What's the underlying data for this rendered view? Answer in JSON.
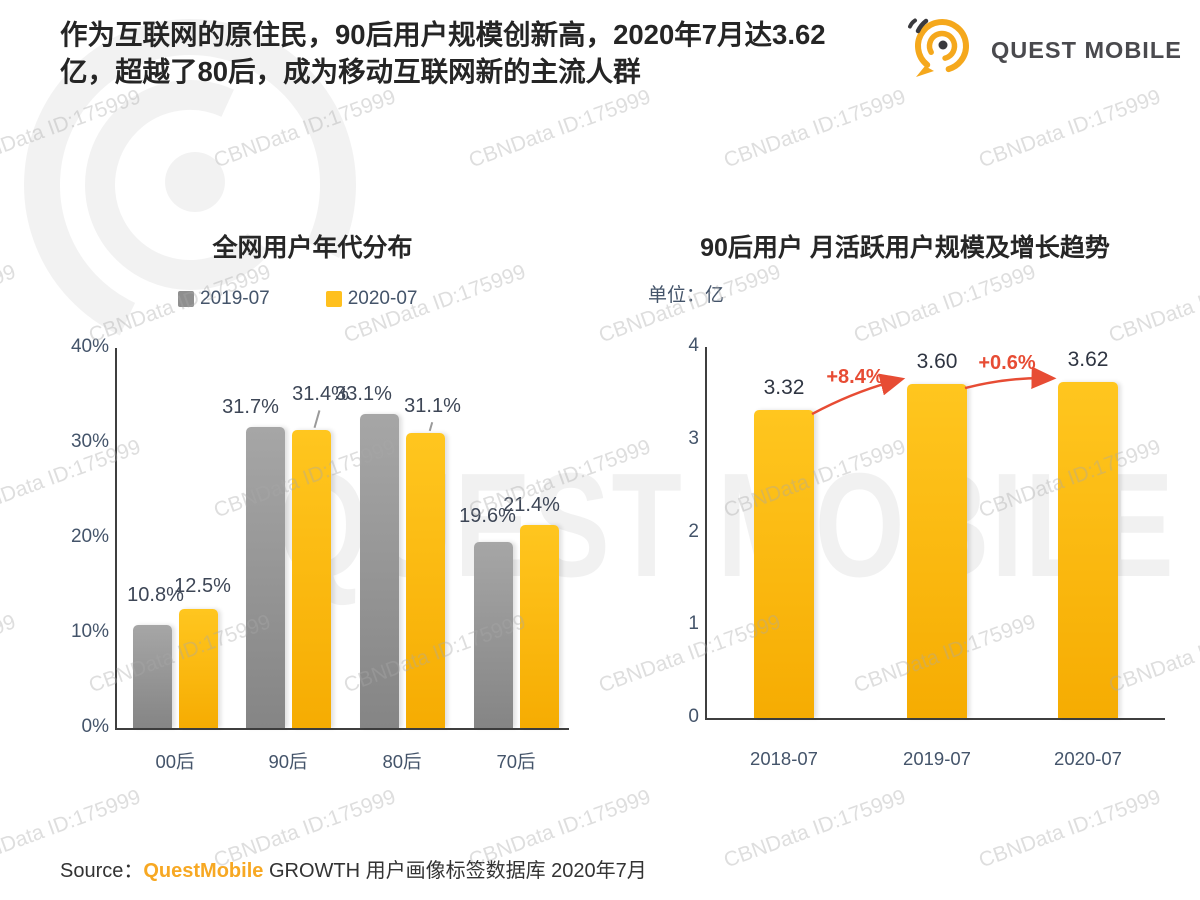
{
  "page": {
    "title_line1": "作为互联网的原住民，90后用户规模创新高，2020年7月达3.62",
    "title_line2": "亿，超越了80后，成为移动互联网新的主流人群",
    "logo_text": "QUEST MOBILE",
    "source_prefix": "Source：",
    "source_brand": "QuestMobile",
    "source_suffix": " GROWTH 用户画像标签数据库 2020年7月"
  },
  "watermark": {
    "tile_text": "CBNData ID:175999",
    "ghost_text": "QUEST MOBILE"
  },
  "colors": {
    "yellow": "#FFC01E",
    "gray": "#8F8F8F",
    "red": "#E74C34",
    "axis": "#3F3F3F",
    "tick_label": "#44546A",
    "brand_orange": "#F7A823"
  },
  "chart_data": [
    {
      "type": "bar",
      "title": "全网用户年代分布",
      "categories": [
        "00后",
        "90后",
        "80后",
        "70后"
      ],
      "series": [
        {
          "name": "2019-07",
          "color": "#8F8F8F",
          "values": [
            10.8,
            31.7,
            33.1,
            19.6
          ]
        },
        {
          "name": "2020-07",
          "color": "#FFC01E",
          "values": [
            12.5,
            31.4,
            31.1,
            21.4
          ]
        }
      ],
      "value_labels": [
        [
          "10.8%",
          "31.7%",
          "33.1%",
          "19.6%"
        ],
        [
          "12.5%",
          "31.4%",
          "31.1%",
          "21.4%"
        ]
      ],
      "xlabel": "",
      "ylabel": "",
      "ylim": [
        0,
        40
      ],
      "ytick_step": 10,
      "yticks": [
        "0%",
        "10%",
        "20%",
        "30%",
        "40%"
      ],
      "grid": false,
      "legend_position": "top"
    },
    {
      "type": "bar",
      "title": "90后用户 月活跃用户规模及增长趋势",
      "unit_label": "单位：亿",
      "categories": [
        "2018-07",
        "2019-07",
        "2020-07"
      ],
      "values": [
        3.32,
        3.6,
        3.62
      ],
      "value_labels": [
        "3.32",
        "3.60",
        "3.62"
      ],
      "bar_color": "#FFC01E",
      "xlabel": "",
      "ylabel": "",
      "ylim": [
        0,
        4
      ],
      "ytick_step": 1,
      "yticks": [
        "0",
        "1",
        "2",
        "3",
        "4"
      ],
      "grid": false,
      "growth_annotations": [
        {
          "from": 0,
          "to": 1,
          "label": "+8.4%",
          "color": "#E74C34"
        },
        {
          "from": 1,
          "to": 2,
          "label": "+0.6%",
          "color": "#E74C34"
        }
      ]
    }
  ]
}
